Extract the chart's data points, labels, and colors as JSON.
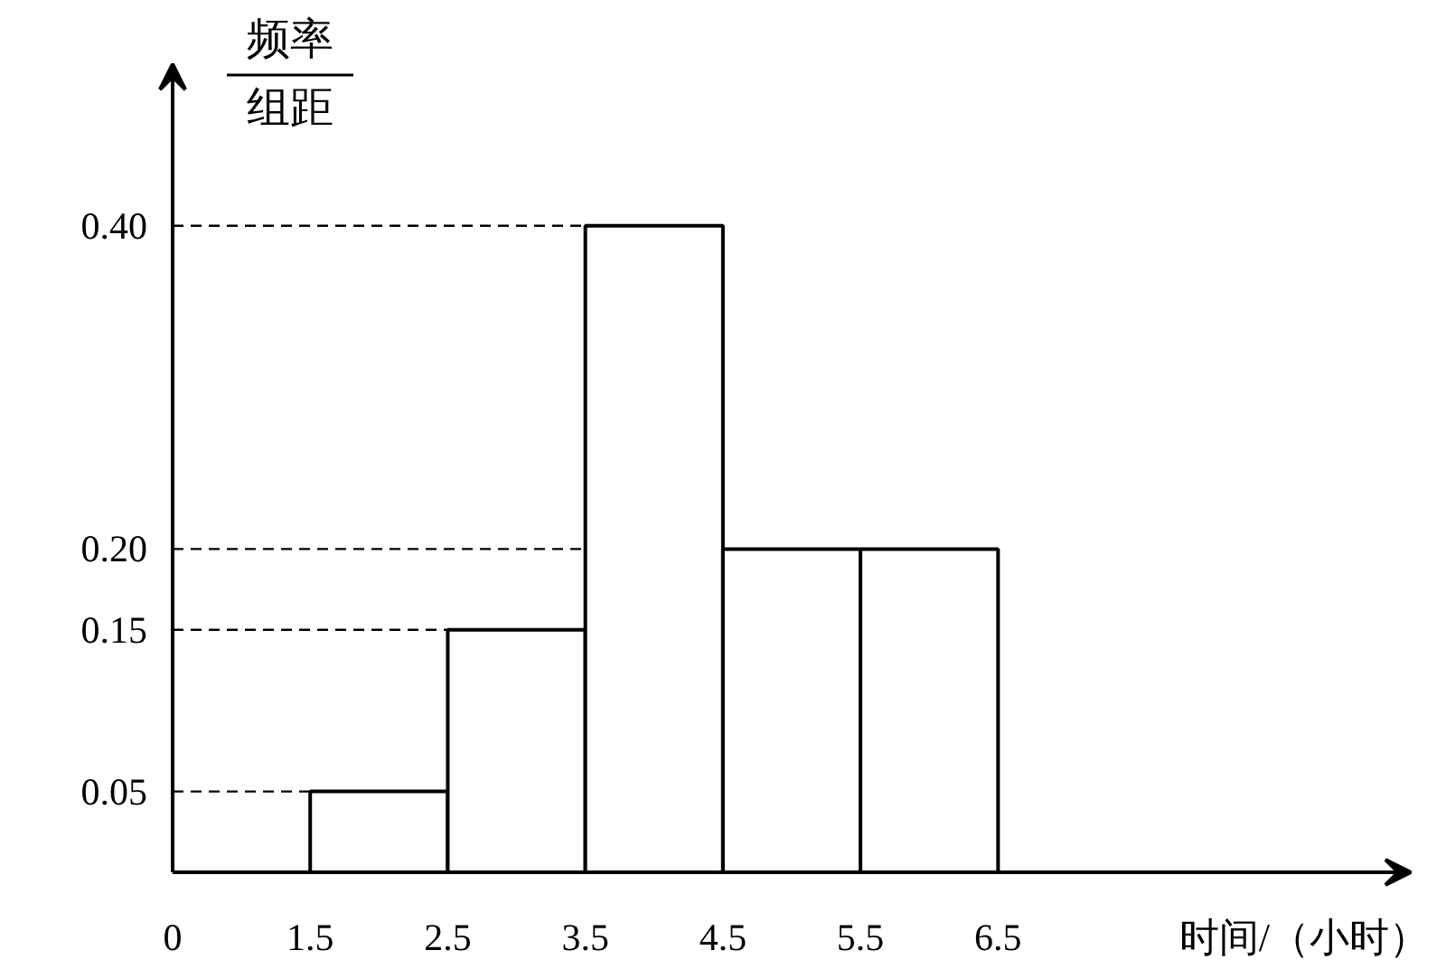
{
  "chart_data": {
    "type": "histogram",
    "ylabel": "频率组距",
    "xlabel": "时间/（小时）",
    "bins": [
      1.5,
      2.5,
      3.5,
      4.5,
      5.5,
      6.5
    ],
    "values": [
      0.05,
      0.15,
      0.4,
      0.2,
      0.2
    ],
    "color": "#ffffff",
    "xlim": [
      0.5,
      9.5
    ],
    "ylim": [
      0,
      0.5
    ],
    "xticks": [
      {
        "value": 0.5,
        "label": "0"
      },
      1.5,
      2.5,
      3.5,
      4.5,
      5.5,
      6.5
    ],
    "yticks": [
      0.05,
      0.15,
      {
        "value": 0.2,
        "label": "0.20"
      },
      {
        "value": 0.4,
        "label": "0.40"
      }
    ],
    "ref_lines": [
      {
        "axis": "y",
        "value": 0.05,
        "line_style": "dashed"
      },
      {
        "axis": "y",
        "value": 0.15,
        "line_style": "dashed"
      },
      {
        "axis": "y",
        "value": 0.2,
        "line_style": "dashed"
      },
      {
        "axis": "y",
        "value": 0.4,
        "line_style": "dashed"
      }
    ]
  }
}
